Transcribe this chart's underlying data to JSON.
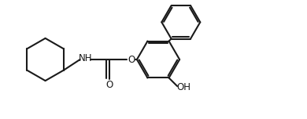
{
  "bg_color": "#ffffff",
  "line_color": "#1a1a1a",
  "line_width": 1.5,
  "font_size": 8.5,
  "figsize": [
    3.9,
    1.52
  ],
  "dpi": 100,
  "xlim": [
    0,
    10.0
  ],
  "ylim": [
    0,
    4.0
  ]
}
